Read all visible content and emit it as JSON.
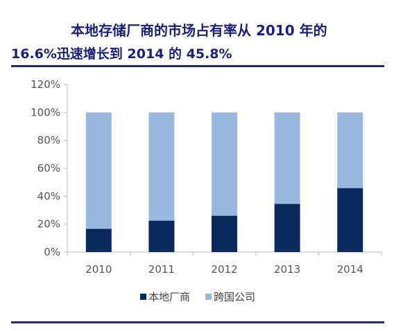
{
  "header": {
    "title_line1": "本地存储厂商的市场占有率从 2010 年的",
    "title_line2": "16.6%迅速增长到 2014 的 45.8%"
  },
  "colors": {
    "title": "#1a1f7a",
    "rule": "#1a2a6c",
    "local": "#0a2a5e",
    "multinational": "#98b9dd",
    "axis": "#bbbbbb",
    "text": "#555555"
  },
  "chart_data": {
    "type": "bar",
    "stacked": true,
    "categories": [
      "2010",
      "2011",
      "2012",
      "2013",
      "2014"
    ],
    "series": [
      {
        "name": "本地厂商",
        "values": [
          16.6,
          22.5,
          26.0,
          34.5,
          45.8
        ],
        "color": "#0a2a5e"
      },
      {
        "name": "跨国公司",
        "values": [
          83.4,
          77.5,
          74.0,
          65.5,
          54.2
        ],
        "color": "#98b9dd"
      }
    ],
    "ylim": [
      0,
      120
    ],
    "yticks": [
      "0%",
      "20%",
      "40%",
      "60%",
      "80%",
      "100%",
      "120%"
    ],
    "grid": false,
    "legend": "bottom"
  }
}
